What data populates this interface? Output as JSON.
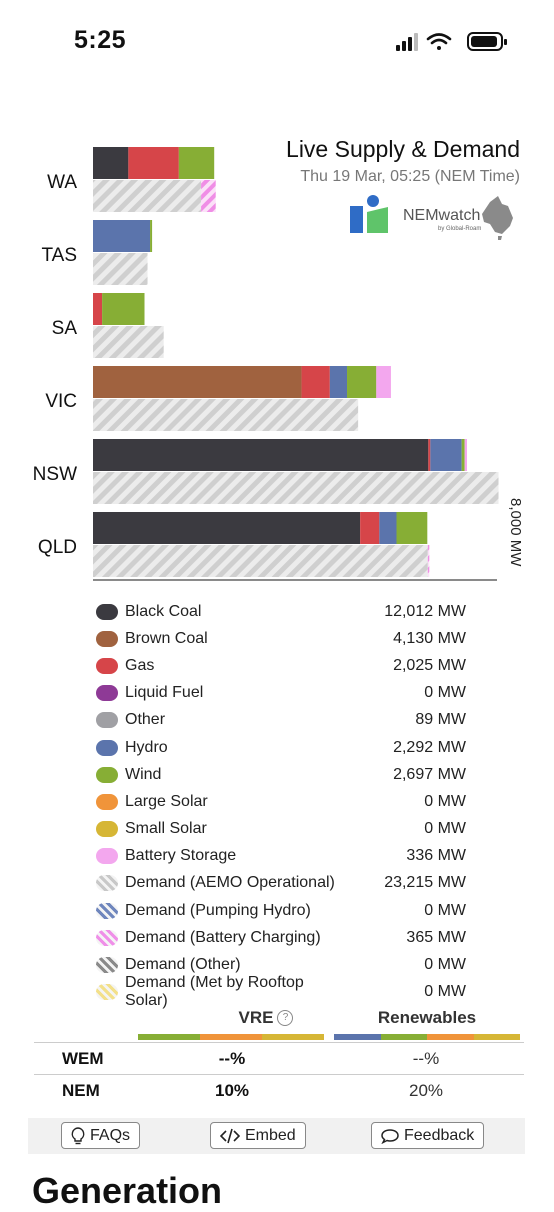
{
  "status_bar": {
    "time": "5:25"
  },
  "header": {
    "title": "Live Supply & Demand",
    "subtitle": "Thu 19 Mar, 05:25 (NEM Time)",
    "logo_text": "NEMwatch",
    "logo_subtext": "by Global-Roam"
  },
  "colors": {
    "black_coal": "#3b3a40",
    "brown_coal": "#a0623f",
    "gas": "#d64549",
    "liquid_fuel": "#8e3a96",
    "other": "#a0a0a4",
    "hydro": "#5b74ac",
    "wind": "#87ae35",
    "large_solar": "#f0943a",
    "small_solar": "#d6b635",
    "battery_storage": "#f3a7ee",
    "demand_hatch": "#d2d2d2",
    "vre_strip": [
      "#87ae35",
      "#f0943a",
      "#d6b635"
    ],
    "ren_strip": [
      "#5b74ac",
      "#87ae35",
      "#f0943a",
      "#d6b635"
    ]
  },
  "chart_data": {
    "type": "bar",
    "orientation": "horizontal-stacked",
    "units": "MW",
    "axis_max_label": "8,000 MW",
    "xlim": [
      0,
      8000
    ],
    "categories": [
      "WA",
      "TAS",
      "SA",
      "VIC",
      "NSW",
      "QLD"
    ],
    "supply": [
      {
        "region": "WA",
        "segments": [
          {
            "fuel": "Black Coal",
            "value": 700,
            "color_key": "black_coal"
          },
          {
            "fuel": "Gas",
            "value": 1000,
            "color_key": "gas"
          },
          {
            "fuel": "Wind",
            "value": 700,
            "color_key": "wind"
          }
        ]
      },
      {
        "region": "TAS",
        "segments": [
          {
            "fuel": "Hydro",
            "value": 1130,
            "color_key": "hydro"
          },
          {
            "fuel": "Wind",
            "value": 40,
            "color_key": "wind"
          }
        ]
      },
      {
        "region": "SA",
        "segments": [
          {
            "fuel": "Gas",
            "value": 180,
            "color_key": "gas"
          },
          {
            "fuel": "Wind",
            "value": 840,
            "color_key": "wind"
          }
        ]
      },
      {
        "region": "VIC",
        "segments": [
          {
            "fuel": "Brown Coal",
            "value": 4130,
            "color_key": "brown_coal"
          },
          {
            "fuel": "Gas",
            "value": 560,
            "color_key": "gas"
          },
          {
            "fuel": "Hydro",
            "value": 340,
            "color_key": "hydro"
          },
          {
            "fuel": "Wind",
            "value": 580,
            "color_key": "wind"
          },
          {
            "fuel": "Battery Storage",
            "value": 290,
            "color_key": "battery_storage"
          }
        ]
      },
      {
        "region": "NSW",
        "segments": [
          {
            "fuel": "Black Coal",
            "value": 6640,
            "color_key": "black_coal"
          },
          {
            "fuel": "Gas",
            "value": 40,
            "color_key": "gas"
          },
          {
            "fuel": "Hydro",
            "value": 620,
            "color_key": "hydro"
          },
          {
            "fuel": "Wind",
            "value": 60,
            "color_key": "wind"
          },
          {
            "fuel": "Battery Storage",
            "value": 46,
            "color_key": "battery_storage"
          }
        ]
      },
      {
        "region": "QLD",
        "segments": [
          {
            "fuel": "Black Coal",
            "value": 5290,
            "color_key": "black_coal"
          },
          {
            "fuel": "Gas",
            "value": 380,
            "color_key": "gas"
          },
          {
            "fuel": "Hydro",
            "value": 340,
            "color_key": "hydro"
          },
          {
            "fuel": "Wind",
            "value": 610,
            "color_key": "wind"
          }
        ]
      }
    ],
    "demand": [
      {
        "region": "WA",
        "operational": 2140,
        "battery_charging": 290
      },
      {
        "region": "TAS",
        "operational": 1080,
        "battery_charging": 0
      },
      {
        "region": "SA",
        "operational": 1400,
        "battery_charging": 0
      },
      {
        "region": "VIC",
        "operational": 5250,
        "battery_charging": 0
      },
      {
        "region": "NSW",
        "operational": 8030,
        "battery_charging": 0
      },
      {
        "region": "QLD",
        "operational": 6630,
        "battery_charging": 30
      }
    ]
  },
  "legend": [
    {
      "label": "Black Coal",
      "value": "12,012 MW",
      "color": "#3b3a40",
      "pattern": "solid"
    },
    {
      "label": "Brown Coal",
      "value": "4,130 MW",
      "color": "#a0623f",
      "pattern": "solid"
    },
    {
      "label": "Gas",
      "value": "2,025 MW",
      "color": "#d64549",
      "pattern": "solid"
    },
    {
      "label": "Liquid Fuel",
      "value": "0 MW",
      "color": "#8e3a96",
      "pattern": "solid"
    },
    {
      "label": "Other",
      "value": "89 MW",
      "color": "#a0a0a4",
      "pattern": "solid"
    },
    {
      "label": "Hydro",
      "value": "2,292 MW",
      "color": "#5b74ac",
      "pattern": "solid"
    },
    {
      "label": "Wind",
      "value": "2,697 MW",
      "color": "#87ae35",
      "pattern": "solid"
    },
    {
      "label": "Large Solar",
      "value": "0 MW",
      "color": "#f0943a",
      "pattern": "solid"
    },
    {
      "label": "Small Solar",
      "value": "0 MW",
      "color": "#d6b635",
      "pattern": "solid"
    },
    {
      "label": "Battery Storage",
      "value": "336 MW",
      "color": "#f3a7ee",
      "pattern": "solid"
    },
    {
      "label": "Demand (AEMO Operational)",
      "value": "23,215 MW",
      "color": "#c8c8c8",
      "pattern": "hatch"
    },
    {
      "label": "Demand (Pumping Hydro)",
      "value": "0 MW",
      "color": "#6f86bd",
      "pattern": "hatch"
    },
    {
      "label": "Demand (Battery Charging)",
      "value": "365 MW",
      "color": "#ef8fe8",
      "pattern": "hatch"
    },
    {
      "label": "Demand (Other)",
      "value": "0 MW",
      "color": "#8a8a8a",
      "pattern": "hatch"
    },
    {
      "label": "Demand (Met by Rooftop Solar)",
      "value": "0 MW",
      "color": "#f3e08a",
      "pattern": "hatch"
    }
  ],
  "summary": {
    "vre_label": "VRE",
    "renewables_label": "Renewables",
    "info_glyph": "?",
    "rows": [
      {
        "label": "WEM",
        "vre": "--%",
        "renewables": "--%"
      },
      {
        "label": "NEM",
        "vre": "10%",
        "renewables": "20%"
      }
    ]
  },
  "buttons": {
    "faqs": "FAQs",
    "embed": "Embed",
    "feedback": "Feedback"
  },
  "section_heading": "Generation"
}
